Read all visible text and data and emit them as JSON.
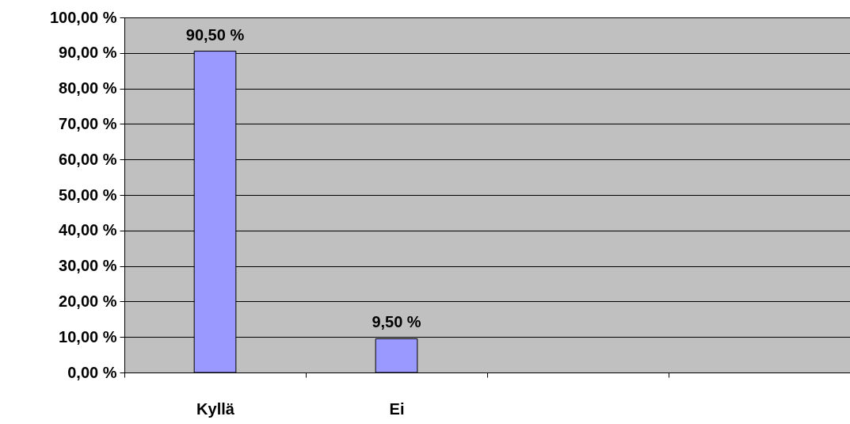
{
  "chart_data": {
    "type": "bar",
    "categories": [
      "Kyllä",
      "Ei",
      null,
      null
    ],
    "values": [
      90.5,
      9.5,
      null,
      null
    ],
    "value_labels": [
      "90,50 %",
      "9,50 %",
      null,
      null
    ],
    "color": "#9999ff",
    "ylim": [
      0,
      100
    ],
    "yticks": [
      {
        "value": 0,
        "label": "0,00 %"
      },
      {
        "value": 10,
        "label": "10,00 %"
      },
      {
        "value": 20,
        "label": "20,00 %"
      },
      {
        "value": 30,
        "label": "30,00 %"
      },
      {
        "value": 40,
        "label": "40,00 %"
      },
      {
        "value": 50,
        "label": "50,00 %"
      },
      {
        "value": 60,
        "label": "60,00 %"
      },
      {
        "value": 70,
        "label": "70,00 %"
      },
      {
        "value": 80,
        "label": "80,00 %"
      },
      {
        "value": 90,
        "label": "90,00 %"
      },
      {
        "value": 100,
        "label": "100,00 %"
      }
    ],
    "grid": "y"
  }
}
